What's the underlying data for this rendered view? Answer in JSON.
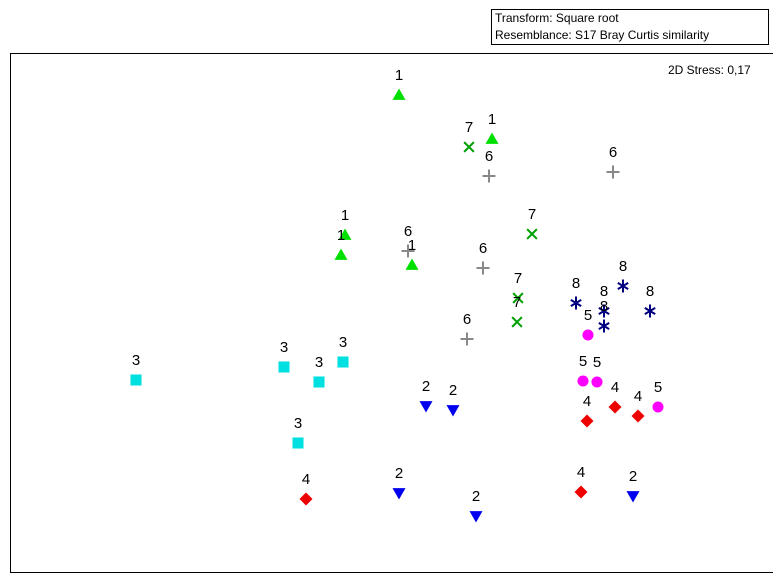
{
  "transform_label": "Transform: Square root",
  "resemblance_label": "Resemblance: S17 Bray Curtis similarity",
  "stress_label": "2D Stress: 0,17",
  "chart_data": {
    "type": "scatter",
    "title": "",
    "xlabel": "",
    "ylabel": "",
    "grid": false,
    "legend": "none",
    "xlim": [
      0,
      773
    ],
    "ylim": [
      0,
      553
    ],
    "groups": [
      {
        "label": "1",
        "marker": "triangle-up",
        "color": "#00e000",
        "points": [
          [
            399,
            95
          ],
          [
            492,
            139
          ],
          [
            345,
            235
          ],
          [
            341,
            255
          ],
          [
            412,
            265
          ]
        ]
      },
      {
        "label": "2",
        "marker": "triangle-down",
        "color": "#0000ee",
        "points": [
          [
            426,
            406
          ],
          [
            453,
            410
          ],
          [
            399,
            493
          ],
          [
            476,
            516
          ],
          [
            633,
            496
          ]
        ]
      },
      {
        "label": "3",
        "marker": "square",
        "color": "#00e0e0",
        "points": [
          [
            136,
            380
          ],
          [
            284,
            367
          ],
          [
            319,
            382
          ],
          [
            343,
            362
          ],
          [
            298,
            443
          ]
        ]
      },
      {
        "label": "4",
        "marker": "diamond",
        "color": "#ee0000",
        "points": [
          [
            306,
            499
          ],
          [
            587,
            421
          ],
          [
            615,
            407
          ],
          [
            638,
            416
          ],
          [
            581,
            492
          ]
        ]
      },
      {
        "label": "5",
        "marker": "circle",
        "color": "#ff00ff",
        "points": [
          [
            588,
            335
          ],
          [
            583,
            381
          ],
          [
            597,
            382
          ],
          [
            658,
            407
          ]
        ]
      },
      {
        "label": "6",
        "marker": "plus",
        "color": "#888888",
        "points": [
          [
            489,
            176
          ],
          [
            613,
            172
          ],
          [
            408,
            251
          ],
          [
            483,
            268
          ],
          [
            467,
            339
          ]
        ]
      },
      {
        "label": "7",
        "marker": "cross",
        "color": "#00a000",
        "points": [
          [
            469,
            147
          ],
          [
            532,
            234
          ],
          [
            518,
            298
          ],
          [
            517,
            322
          ]
        ]
      },
      {
        "label": "8",
        "marker": "asterisk",
        "color": "#000080",
        "points": [
          [
            576,
            303
          ],
          [
            604,
            311
          ],
          [
            623,
            286
          ],
          [
            650,
            311
          ],
          [
            604,
            326
          ]
        ]
      }
    ]
  }
}
